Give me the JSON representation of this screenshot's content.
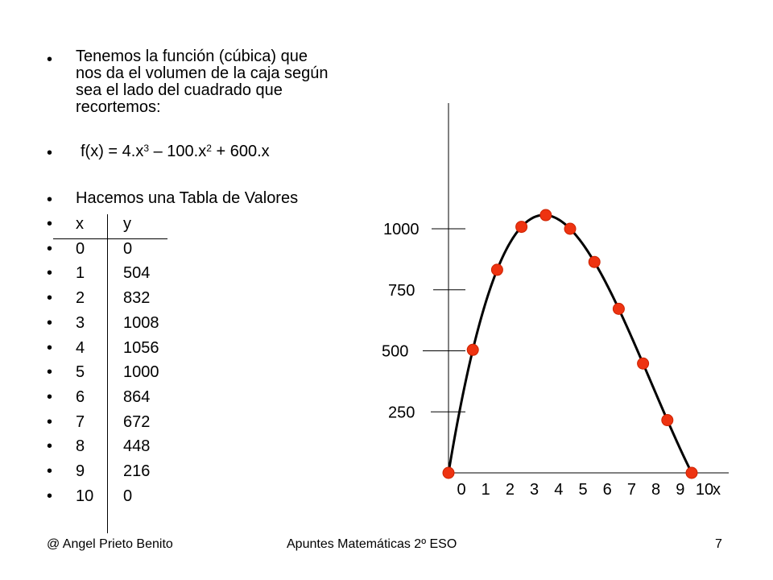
{
  "slide": {
    "intro_text": "Tenemos la función (cúbica) que nos da el volumen de la caja según sea el lado del cuadrado que recortemos:",
    "function": {
      "prefix": "f(x) = 4.x",
      "exp1": "3",
      "mid": " – 100.x",
      "exp2": "2",
      "suffix": " + 600.x"
    },
    "table_heading": "Hacemos una Tabla de Valores",
    "table": {
      "header_x": "x",
      "header_y": "y",
      "rows": [
        {
          "x": "0",
          "y": "0"
        },
        {
          "x": "1",
          "y": "504"
        },
        {
          "x": "2",
          "y": "832"
        },
        {
          "x": "3",
          "y": "1008"
        },
        {
          "x": "4",
          "y": "1056"
        },
        {
          "x": "5",
          "y": "1000"
        },
        {
          "x": "6",
          "y": "864"
        },
        {
          "x": "7",
          "y": "672"
        },
        {
          "x": "8",
          "y": "448"
        },
        {
          "x": "9",
          "y": "216"
        },
        {
          "x": "10",
          "y": "0"
        }
      ]
    }
  },
  "chart_data": {
    "type": "line",
    "x": [
      0,
      1,
      2,
      3,
      4,
      5,
      6,
      7,
      8,
      9,
      10
    ],
    "series": [
      {
        "values": [
          0,
          504,
          832,
          1008,
          1056,
          1000,
          864,
          672,
          448,
          216,
          0
        ]
      }
    ],
    "curve_function": "4x^3 - 100x^2 + 600x",
    "marker_color": "#ee3311",
    "marker_stroke": "#cc2200",
    "xlim": [
      0,
      10
    ],
    "ylim": [
      0,
      1000
    ],
    "x_tick_labels": [
      "0",
      "1",
      "2",
      "3",
      "4",
      "5",
      "6",
      "7",
      "8",
      "9",
      "10"
    ],
    "x_axis_label": "x",
    "y_ticks": [
      250,
      500,
      750,
      1000
    ],
    "y_tick_labels": [
      "250",
      "500",
      "750",
      "1000"
    ],
    "grid": false,
    "legend": "none"
  },
  "footer": {
    "author": "@ Angel Prieto Benito",
    "title": "Apuntes Matemáticas 2º ESO",
    "page": "7"
  }
}
